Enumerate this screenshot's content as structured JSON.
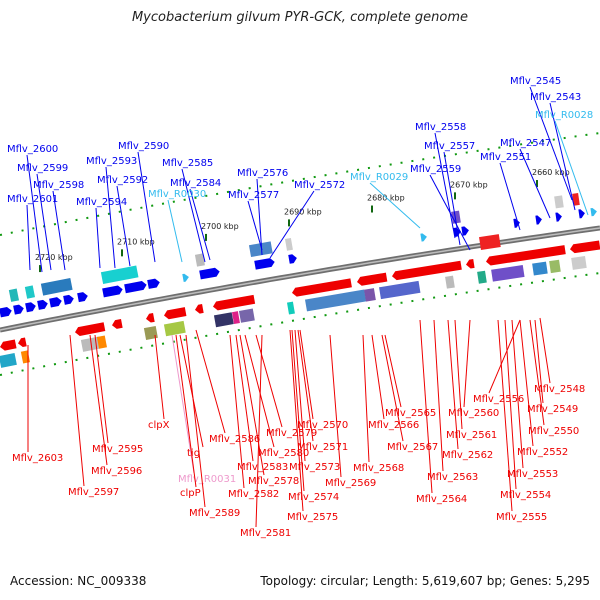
{
  "title": "Mycobacterium gilvum PYR-GCK, complete genome",
  "footer": {
    "accession": "Accession: NC_009338",
    "summary": "Topology: circular; Length: 5,619,607 bp; Genes: 5,295"
  },
  "colors": {
    "forward_gene": "#0000ee",
    "reverse_gene": "#ee0000",
    "rna_gene": "#33bbee",
    "rna_reverse_gene": "#ee99cc",
    "backbone": "#888888",
    "ticks": "#119911"
  },
  "ticks": [
    "2720 kbp",
    "2710 kbp",
    "2700 kbp",
    "2690 kbp",
    "2680 kbp",
    "2670 kbp",
    "2660 kbp"
  ],
  "top_labels": [
    {
      "text": "Mflv_2545",
      "kind": "forward"
    },
    {
      "text": "Mflv_2543",
      "kind": "forward"
    },
    {
      "text": "Mflv_R0028",
      "kind": "rna"
    },
    {
      "text": "Mflv_2558",
      "kind": "forward"
    },
    {
      "text": "Mflv_2547",
      "kind": "forward"
    },
    {
      "text": "Mflv_2557",
      "kind": "forward"
    },
    {
      "text": "Mflv_2551",
      "kind": "forward"
    },
    {
      "text": "Mflv_2559",
      "kind": "forward"
    },
    {
      "text": "Mflv_R0029",
      "kind": "rna"
    },
    {
      "text": "Mflv_2590",
      "kind": "forward"
    },
    {
      "text": "Mflv_2600",
      "kind": "forward"
    },
    {
      "text": "Mflv_2593",
      "kind": "forward"
    },
    {
      "text": "Mflv_2585",
      "kind": "forward"
    },
    {
      "text": "Mflv_2599",
      "kind": "forward"
    },
    {
      "text": "Mflv_2592",
      "kind": "forward"
    },
    {
      "text": "Mflv_2576",
      "kind": "forward"
    },
    {
      "text": "Mflv_2598",
      "kind": "forward"
    },
    {
      "text": "Mflv_2584",
      "kind": "forward"
    },
    {
      "text": "Mflv_2572",
      "kind": "forward"
    },
    {
      "text": "Mflv_R0030",
      "kind": "rna"
    },
    {
      "text": "Mflv_2601",
      "kind": "forward"
    },
    {
      "text": "Mflv_2594",
      "kind": "forward"
    },
    {
      "text": "Mflv_2577",
      "kind": "forward"
    }
  ],
  "bottom_labels": [
    {
      "text": "Mflv_2548",
      "kind": "reverse"
    },
    {
      "text": "Mflv_2556",
      "kind": "reverse"
    },
    {
      "text": "Mflv_2549",
      "kind": "reverse"
    },
    {
      "text": "Mflv_2565",
      "kind": "reverse"
    },
    {
      "text": "Mflv_2560",
      "kind": "reverse"
    },
    {
      "text": "Mflv_2570",
      "kind": "reverse"
    },
    {
      "text": "Mflv_2566",
      "kind": "reverse"
    },
    {
      "text": "clpX",
      "kind": "reverse"
    },
    {
      "text": "Mflv_2550",
      "kind": "reverse"
    },
    {
      "text": "Mflv_2561",
      "kind": "reverse"
    },
    {
      "text": "Mflv_2579",
      "kind": "reverse"
    },
    {
      "text": "Mflv_2586",
      "kind": "reverse"
    },
    {
      "text": "Mflv_2571",
      "kind": "reverse"
    },
    {
      "text": "Mflv_2567",
      "kind": "reverse"
    },
    {
      "text": "Mflv_2595",
      "kind": "reverse"
    },
    {
      "text": "Mflv_2552",
      "kind": "reverse"
    },
    {
      "text": "Mflv_2580",
      "kind": "reverse"
    },
    {
      "text": "tig",
      "kind": "reverse"
    },
    {
      "text": "Mflv_2562",
      "kind": "reverse"
    },
    {
      "text": "Mflv_2603",
      "kind": "reverse"
    },
    {
      "text": "Mflv_2583",
      "kind": "reverse"
    },
    {
      "text": "Mflv_2573",
      "kind": "reverse"
    },
    {
      "text": "Mflv_2568",
      "kind": "reverse"
    },
    {
      "text": "Mflv_2596",
      "kind": "reverse"
    },
    {
      "text": "Mflv_2553",
      "kind": "reverse"
    },
    {
      "text": "Mflv_2563",
      "kind": "reverse"
    },
    {
      "text": "Mflv_R0031",
      "kind": "rna_reverse"
    },
    {
      "text": "Mflv_2578",
      "kind": "reverse"
    },
    {
      "text": "Mflv_2569",
      "kind": "reverse"
    },
    {
      "text": "clpP",
      "kind": "reverse"
    },
    {
      "text": "Mflv_2597",
      "kind": "reverse"
    },
    {
      "text": "Mflv_2582",
      "kind": "reverse"
    },
    {
      "text": "Mflv_2574",
      "kind": "reverse"
    },
    {
      "text": "Mflv_2554",
      "kind": "reverse"
    },
    {
      "text": "Mflv_2564",
      "kind": "reverse"
    },
    {
      "text": "Mflv_2589",
      "kind": "reverse"
    },
    {
      "text": "Mflv_2575",
      "kind": "reverse"
    },
    {
      "text": "Mflv_2555",
      "kind": "reverse"
    },
    {
      "text": "Mflv_2581",
      "kind": "reverse"
    }
  ]
}
